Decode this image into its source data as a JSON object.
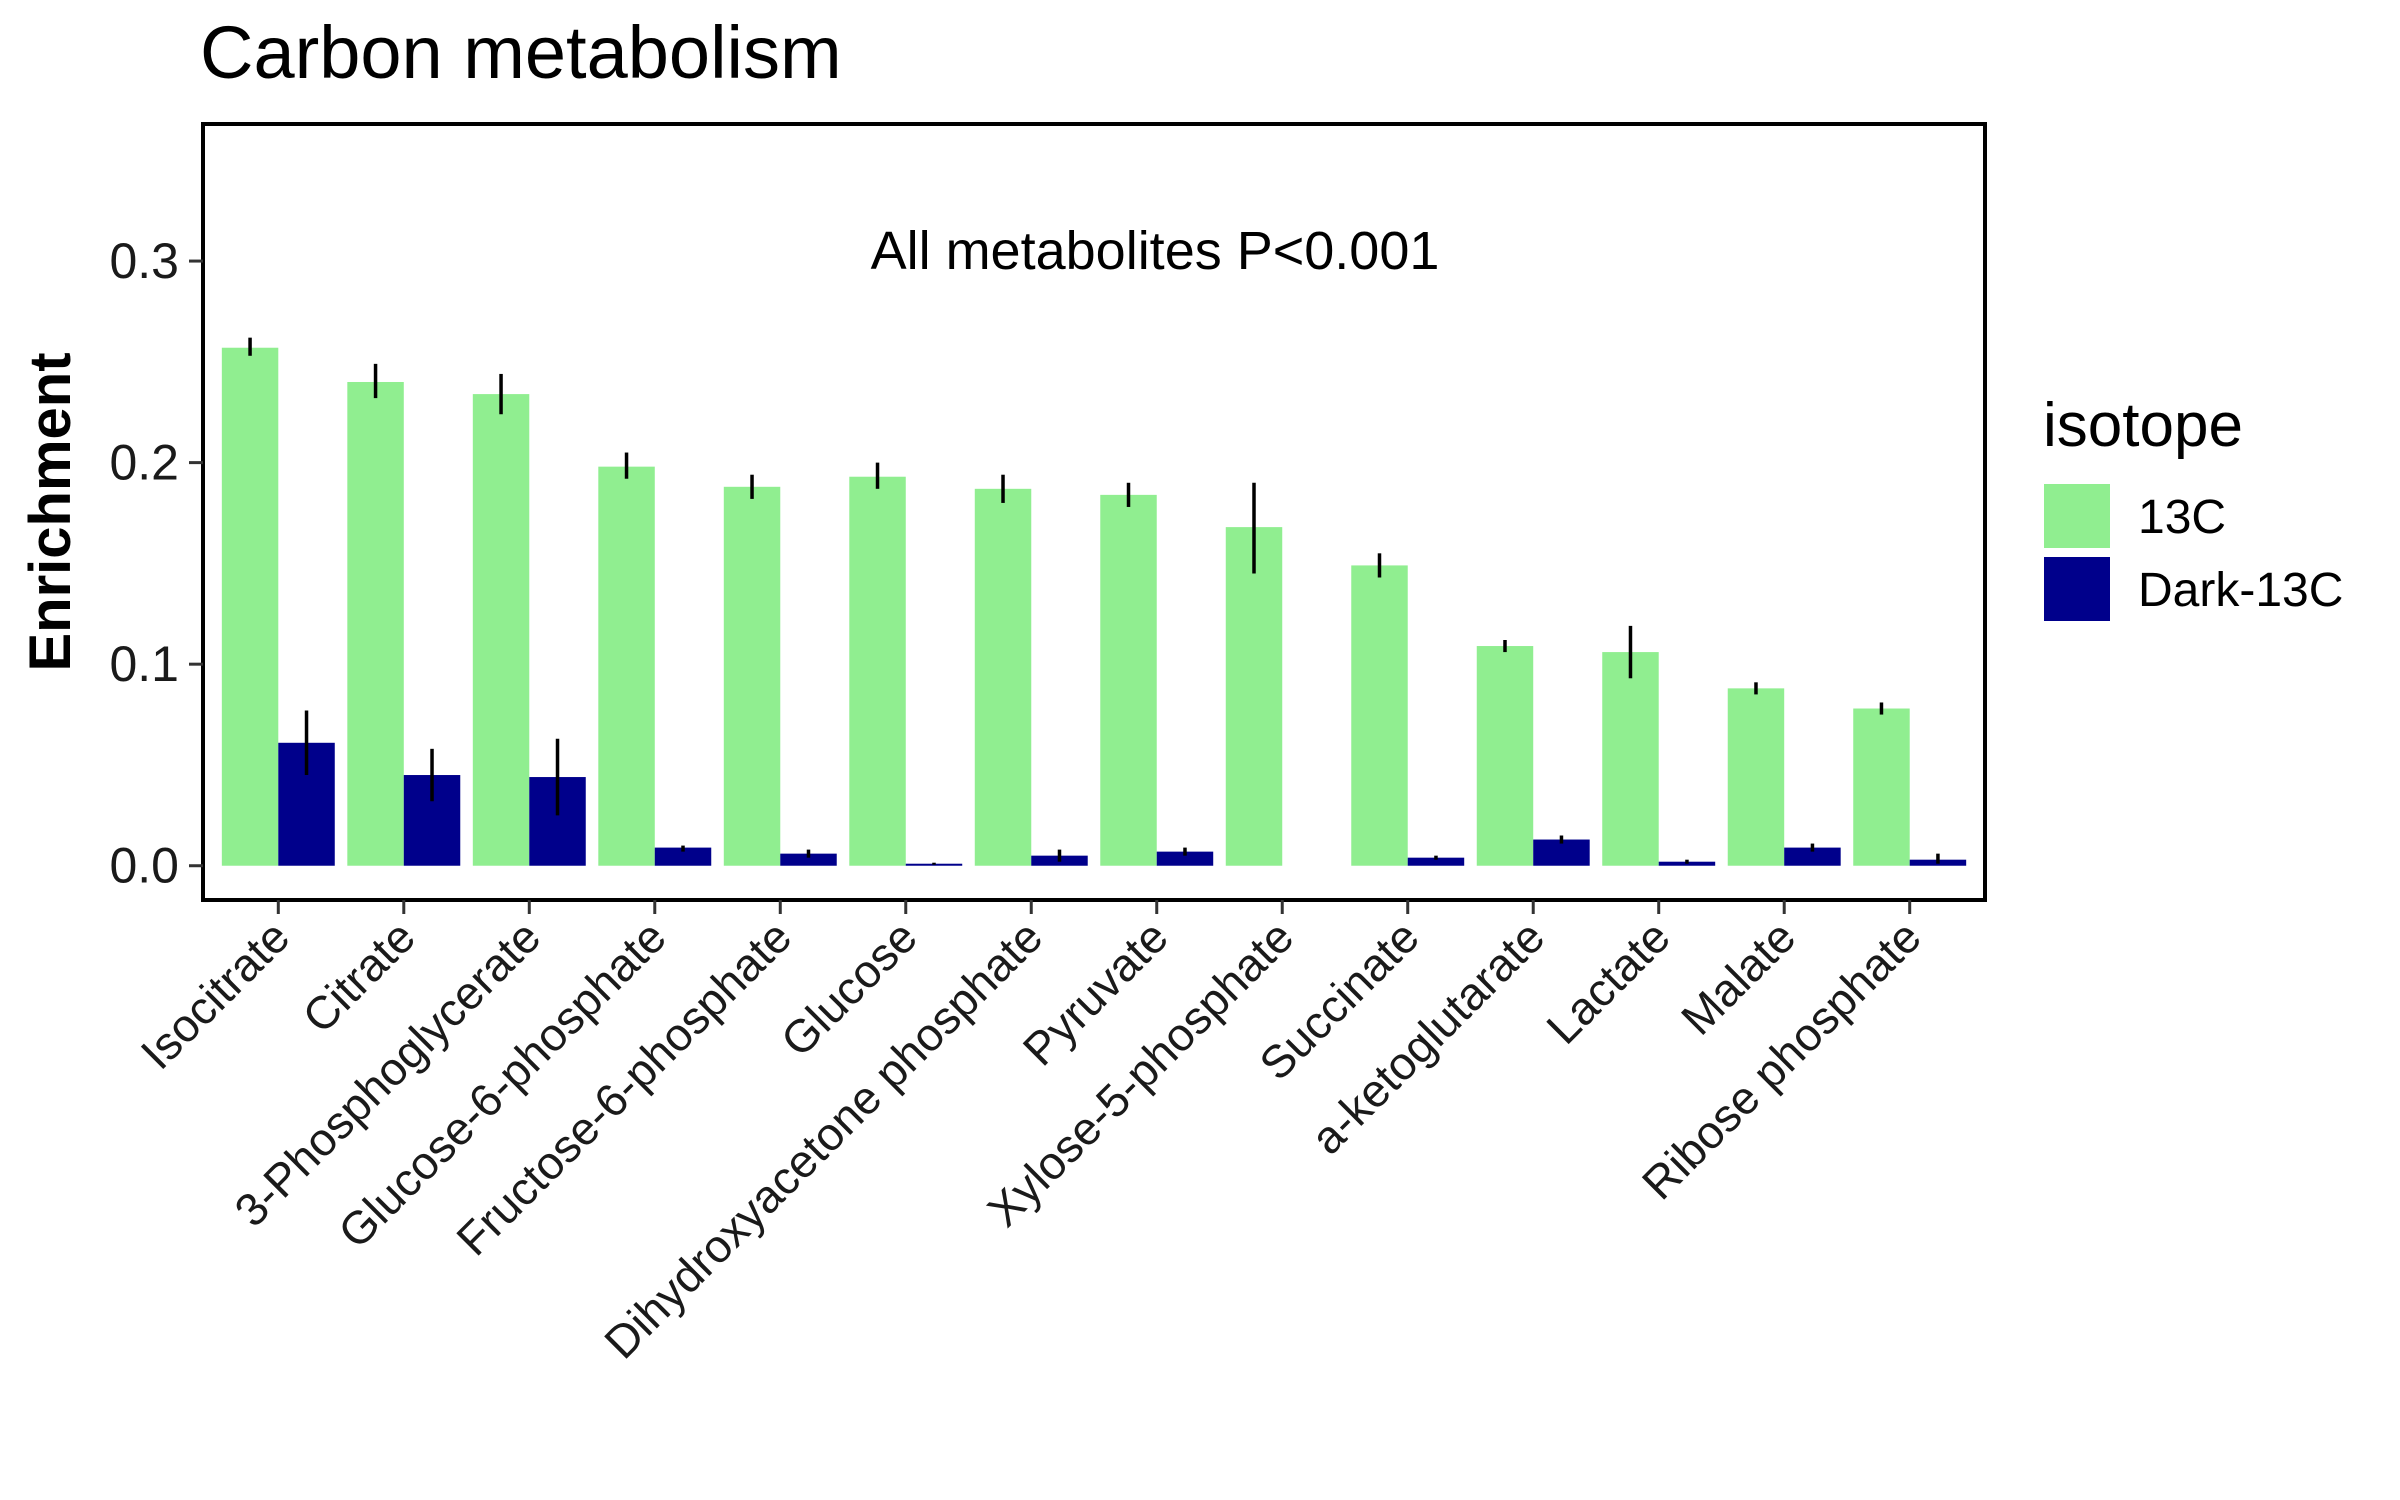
{
  "chart_data": {
    "type": "bar",
    "title": "Carbon metabolism",
    "annotation": "All metabolites P<0.001",
    "xlabel": "",
    "ylabel": "Enrichment",
    "ylim": [
      -0.017,
      0.368
    ],
    "yticks": [
      0.0,
      0.1,
      0.2,
      0.3
    ],
    "ytick_labels": [
      "0.0",
      "0.1",
      "0.2",
      "0.3"
    ],
    "grid": false,
    "legend": {
      "title": "isotope",
      "position": "right"
    },
    "categories": [
      "Isocitrate",
      "Citrate",
      "3-Phosphoglycerate",
      "Glucose-6-phosphate",
      "Fructose-6-phosphate",
      "Glucose",
      "Dihydroxyacetone phosphate",
      "Pyruvate",
      "Xylose-5-phosphate",
      "Succinate",
      "a-ketoglutarate",
      "Lactate",
      "Malate",
      "Ribose phosphate"
    ],
    "series": [
      {
        "name": "13C",
        "color": "#90EE90",
        "values": [
          0.257,
          0.24,
          0.234,
          0.198,
          0.188,
          0.193,
          0.187,
          0.184,
          0.168,
          0.149,
          0.109,
          0.106,
          0.088,
          0.078
        ],
        "error_low": [
          0.253,
          0.232,
          0.224,
          0.192,
          0.182,
          0.187,
          0.18,
          0.178,
          0.145,
          0.143,
          0.106,
          0.093,
          0.085,
          0.075
        ],
        "error_high": [
          0.262,
          0.249,
          0.244,
          0.205,
          0.194,
          0.2,
          0.194,
          0.19,
          0.19,
          0.155,
          0.112,
          0.119,
          0.091,
          0.081
        ]
      },
      {
        "name": "Dark-13C",
        "color": "#00008B",
        "values": [
          0.061,
          0.045,
          0.044,
          0.009,
          0.006,
          0.001,
          0.005,
          0.007,
          null,
          0.004,
          0.013,
          0.002,
          0.009,
          0.003
        ],
        "error_low": [
          0.045,
          0.032,
          0.025,
          0.007,
          0.004,
          0.0005,
          0.002,
          0.005,
          null,
          0.003,
          0.011,
          0.001,
          0.007,
          0.001
        ],
        "error_high": [
          0.077,
          0.058,
          0.063,
          0.01,
          0.008,
          0.0015,
          0.008,
          0.009,
          null,
          0.005,
          0.015,
          0.003,
          0.011,
          0.006
        ]
      }
    ]
  }
}
